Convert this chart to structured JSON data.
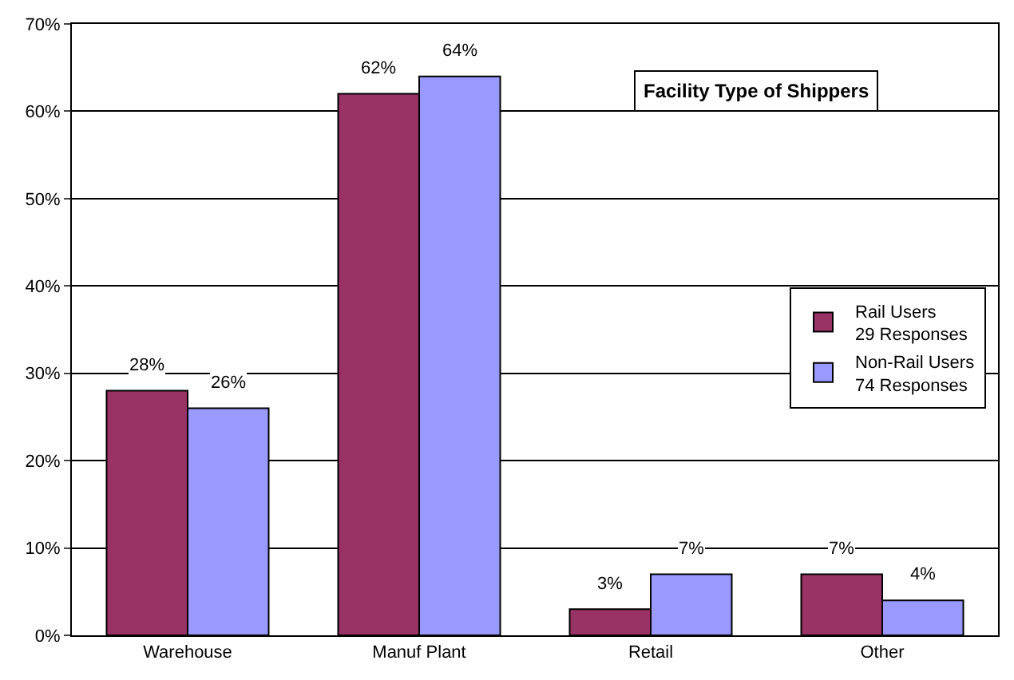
{
  "chart_data": {
    "type": "bar",
    "title": "Facility Type of Shippers",
    "categories": [
      "Warehouse",
      "Manuf Plant",
      "Retail",
      "Other"
    ],
    "series": [
      {
        "name": "Rail Users\n29 Responses",
        "color": "#993366",
        "values": [
          28,
          62,
          3,
          7
        ],
        "value_labels": [
          "28%",
          "62%",
          "3%",
          "7%"
        ]
      },
      {
        "name": "Non-Rail Users\n74 Responses",
        "color": "#9999ff",
        "values": [
          26,
          64,
          7,
          4
        ],
        "value_labels": [
          "26%",
          "64%",
          "7%",
          "4%"
        ]
      }
    ],
    "ylim": [
      0,
      70
    ],
    "yticks": [
      {
        "value": 0,
        "label": "0%"
      },
      {
        "value": 10,
        "label": "10%"
      },
      {
        "value": 20,
        "label": "20%"
      },
      {
        "value": 30,
        "label": "30%"
      },
      {
        "value": 40,
        "label": "40%"
      },
      {
        "value": 50,
        "label": "50%"
      },
      {
        "value": 60,
        "label": "60%"
      },
      {
        "value": 70,
        "label": "70%"
      }
    ],
    "grid": "y",
    "legend": "right"
  }
}
